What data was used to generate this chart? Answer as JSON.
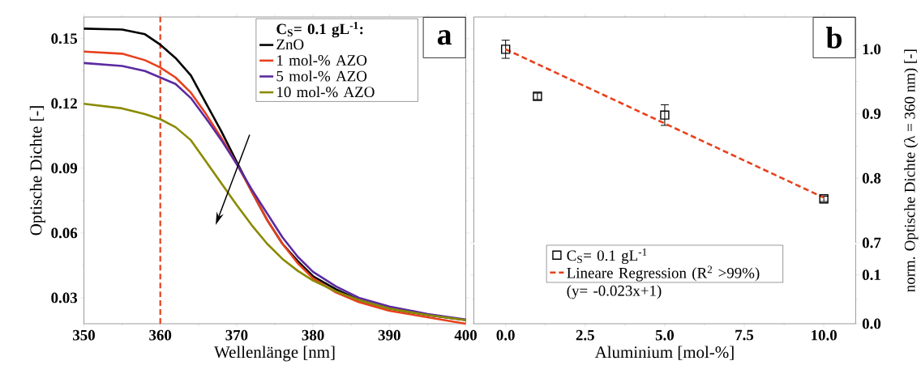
{
  "chart_data": [
    {
      "type": "line",
      "xlabel": "Wellenlänge [nm]",
      "ylabel": "Optische Dichte [-]",
      "legend_title": "C$_{S}$= 0.1 gL$^{-1}$:",
      "x": [
        350,
        355,
        358,
        360,
        362,
        364,
        366,
        368,
        370,
        372,
        374,
        376,
        378,
        380,
        383,
        386,
        390,
        395,
        400
      ],
      "series": [
        {
          "name": "ZnO",
          "color": "#000000",
          "values": [
            0.1546,
            0.1542,
            0.152,
            0.1472,
            0.141,
            0.133,
            0.12,
            0.107,
            0.093,
            0.079,
            0.066,
            0.055,
            0.047,
            0.04,
            0.034,
            0.029,
            0.025,
            0.022,
            0.0197
          ]
        },
        {
          "name": "1 mol-% AZO",
          "color": "#e8401c",
          "values": [
            0.144,
            0.143,
            0.14,
            0.1366,
            0.132,
            0.125,
            0.115,
            0.104,
            0.092,
            0.079,
            0.066,
            0.055,
            0.046,
            0.039,
            0.0325,
            0.028,
            0.024,
            0.021,
            0.018
          ]
        },
        {
          "name": "5 mol-% AZO",
          "color": "#5b2aa0",
          "values": [
            0.1387,
            0.1373,
            0.135,
            0.132,
            0.129,
            0.1225,
            0.113,
            0.103,
            0.092,
            0.08,
            0.069,
            0.058,
            0.049,
            0.042,
            0.0353,
            0.03,
            0.026,
            0.0225,
            0.02
          ]
        },
        {
          "name": "10 mol-% AZO",
          "color": "#8a8a00",
          "values": [
            0.1198,
            0.1177,
            0.115,
            0.1127,
            0.109,
            0.103,
            0.093,
            0.083,
            0.073,
            0.0635,
            0.055,
            0.048,
            0.0425,
            0.038,
            0.033,
            0.029,
            0.025,
            0.022,
            0.0197
          ]
        }
      ],
      "xlim": [
        350,
        400
      ],
      "xticks": [
        350,
        360,
        370,
        380,
        390,
        400
      ],
      "ylim": [
        0.018,
        0.16
      ],
      "yticks": [
        0.03,
        0.06,
        0.09,
        0.12,
        0.15
      ],
      "ref_lines": [
        {
          "axis": "x",
          "value": 360,
          "color": "#e8401c",
          "line_style": "dashed"
        }
      ],
      "annotations": [
        "a"
      ],
      "legend": "top right",
      "line_style": "solid",
      "marker": "none"
    },
    {
      "type": "scatter",
      "ylabel": "norm. Optische Dichte (λ = 360 nm) [-]",
      "series": [
        {
          "name": "C$_{S}$= 0.1 gL$^{-1}$",
          "type": "scatter",
          "color": "#000000",
          "x": [
            0,
            1,
            5,
            10
          ],
          "values": [
            1.0,
            0.927,
            0.898,
            0.768
          ],
          "errors": [
            0.014,
            0.005,
            0.016,
            0.004
          ],
          "marker": "square"
        },
        {
          "name": "Lineare Regression (R$^{2}$ >99%) (y= -0.023x+1)",
          "type": "line",
          "color": "#e8401c",
          "x": [
            0,
            10
          ],
          "values": [
            1.0,
            0.77
          ],
          "line_style": "dashed"
        }
      ],
      "xlim": [
        -1,
        11
      ],
      "xticks": [
        {
          "value": 0,
          "label": null
        },
        {
          "value": 2.5,
          "label": null
        },
        {
          "value": 5,
          "label": null
        },
        {
          "value": 7.5,
          "label": null
        },
        {
          "value": 10,
          "label": null
        }
      ],
      "ylim": [
        0.7,
        1.05
      ],
      "yticks": [
        0.7,
        0.8,
        0.9,
        {
          "value": 1.0,
          "label": "1.0"
        }
      ],
      "tick_labels": "y",
      "legend": "bottom",
      "annotations": [
        "b"
      ]
    },
    {
      "type": "scatter",
      "xlabel": "Aluminium [mol-%]",
      "xlim": [
        -1,
        11
      ],
      "xticks": [
        {
          "value": 0,
          "label": "0.0"
        },
        {
          "value": 2.5,
          "label": "2.5"
        },
        {
          "value": 5,
          "label": "5.0"
        },
        {
          "value": 7.5,
          "label": "7.5"
        },
        {
          "value": 10,
          "label": "10.0"
        }
      ],
      "ylim": [
        0,
        0.1625
      ],
      "yticks": [
        {
          "value": 0,
          "label": "0.0"
        },
        0.1
      ]
    }
  ]
}
